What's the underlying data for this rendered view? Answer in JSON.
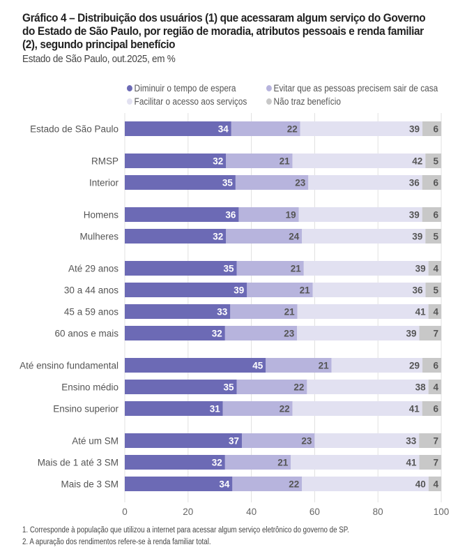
{
  "chart_data": {
    "type": "bar",
    "orientation": "horizontal",
    "stacked": true,
    "title": "Gráfico 4 – Distribuição dos usuários (1) que acessaram algum serviço do Governo do Estado de São Paulo, por região de moradia, atributos pessoais e renda familiar (2), segundo principal benefício",
    "subtitle": "Estado de São Paulo, out.2025, em %",
    "xlabel": "",
    "ylabel": "",
    "xlim": [
      0,
      100
    ],
    "xticks": [
      "0",
      "20",
      "40",
      "60",
      "80",
      "100"
    ],
    "grid": true,
    "legend_position": "top",
    "groups": [
      [
        "Estado de São Paulo"
      ],
      [
        "RMSP",
        "Interior"
      ],
      [
        "Homens",
        "Mulheres"
      ],
      [
        "Até 29 anos",
        "30 a 44 anos",
        "45 a 59 anos",
        "60 anos e mais"
      ],
      [
        "Até ensino fundamental",
        "Ensino médio",
        "Ensino superior"
      ],
      [
        "Até um SM",
        "Mais de 1 até 3 SM",
        "Mais de 3 SM"
      ]
    ],
    "categories": [
      "Estado de São Paulo",
      "RMSP",
      "Interior",
      "Homens",
      "Mulheres",
      "Até 29 anos",
      "30 a 44 anos",
      "45 a 59 anos",
      "60 anos e mais",
      "Até ensino fundamental",
      "Ensino médio",
      "Ensino superior",
      "Até um SM",
      "Mais de 1 até 3 SM",
      "Mais de 3 SM"
    ],
    "series": [
      {
        "name": "Diminuir o tempo de espera",
        "color": "#6c6ab5",
        "label_color": "#ffffff",
        "values": [
          34,
          32,
          35,
          36,
          32,
          35,
          39,
          33,
          32,
          45,
          35,
          31,
          37,
          32,
          34
        ]
      },
      {
        "name": "Evitar que as pessoas precisem sair de casa",
        "color": "#b7b4dd",
        "label_color": "#555555",
        "values": [
          22,
          21,
          23,
          19,
          24,
          21,
          21,
          21,
          23,
          21,
          22,
          22,
          23,
          21,
          22
        ]
      },
      {
        "name": "Facilitar o acesso aos serviços",
        "color": "#e2e1f1",
        "label_color": "#555555",
        "values": [
          39,
          42,
          36,
          39,
          39,
          39,
          36,
          41,
          39,
          29,
          38,
          41,
          33,
          41,
          40
        ]
      },
      {
        "name": "Não traz benefício",
        "color": "#c8c8c8",
        "label_color": "#555555",
        "values": [
          6,
          5,
          6,
          6,
          5,
          4,
          5,
          4,
          7,
          6,
          4,
          6,
          7,
          7,
          4
        ]
      }
    ]
  },
  "legend": {
    "items": [
      {
        "label": "Diminuir o tempo de espera",
        "color": "#6c6ab5"
      },
      {
        "label": "Evitar que as pessoas precisem sair de casa",
        "color": "#b7b4dd"
      },
      {
        "label": "Facilitar o acesso aos serviços",
        "color": "#e2e1f1"
      },
      {
        "label": "Não traz benefício",
        "color": "#c8c8c8"
      }
    ]
  },
  "footnotes": [
    "1. Corresponde à população que utilizou a internet para acessar algum serviço eletrônico do governo de SP.",
    "2. A apuração dos rendimentos refere-se à renda familiar total."
  ]
}
